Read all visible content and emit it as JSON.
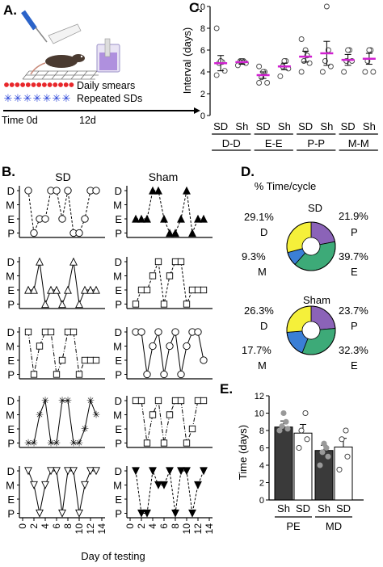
{
  "panel_labels": {
    "a": "A.",
    "b": "B.",
    "c": "C.",
    "d": "D.",
    "e": "E."
  },
  "panel_a": {
    "daily_smears": "Daily smears",
    "repeated_sds": "Repeated SDs",
    "time_start": "Time 0d",
    "time_end": "12d",
    "colors": {
      "smears": "#e8262a",
      "sds": "#1f3bd6"
    }
  },
  "chart_data": [
    {
      "id": "C",
      "type": "scatter",
      "ylabel": "Interval (days)",
      "ylim": [
        0,
        10
      ],
      "yticks": [
        0,
        2,
        4,
        6,
        8,
        10
      ],
      "mean_color": "#d020d0",
      "groups": [
        {
          "label": "SD",
          "transition": "D-D",
          "points": [
            3.7,
            4.1,
            4.8,
            4.9,
            5.0,
            8.0
          ],
          "mean": 4.8,
          "sem": 0.7
        },
        {
          "label": "Sh",
          "transition": "D-D",
          "points": [
            4.6,
            4.8,
            5.0,
            5.0,
            5.0
          ],
          "mean": 4.9,
          "sem": 0.2
        },
        {
          "label": "SD",
          "transition": "E-E",
          "points": [
            3.0,
            3.0,
            3.5,
            4.0,
            4.0,
            4.5
          ],
          "mean": 3.7,
          "sem": 0.3
        },
        {
          "label": "Sh",
          "transition": "E-E",
          "points": [
            3.6,
            4.3,
            4.5,
            5.0,
            5.0
          ],
          "mean": 4.5,
          "sem": 0.3
        },
        {
          "label": "SD",
          "transition": "P-P",
          "points": [
            4.0,
            4.8,
            5.0,
            5.5,
            6.0,
            7.0
          ],
          "mean": 5.4,
          "sem": 0.5
        },
        {
          "label": "Sh",
          "transition": "P-P",
          "points": [
            4.0,
            4.5,
            5.0,
            6.0,
            10.0
          ],
          "mean": 5.7,
          "sem": 1.1
        },
        {
          "label": "SD",
          "transition": "M-M",
          "points": [
            4.0,
            5.0,
            5.0,
            6.0,
            6.0
          ],
          "mean": 5.1,
          "sem": 0.5
        },
        {
          "label": "Sh",
          "transition": "M-M",
          "points": [
            4.0,
            4.0,
            5.0,
            6.0,
            6.0
          ],
          "mean": 5.2,
          "sem": 0.5
        }
      ],
      "transition_labels": [
        "D-D",
        "E-E",
        "P-P",
        "M-M"
      ]
    },
    {
      "id": "B",
      "type": "line",
      "column_titles": [
        "SD",
        "Sham"
      ],
      "states": [
        "D",
        "M",
        "E",
        "P"
      ],
      "xticks": [
        "0",
        "2",
        "4",
        "6",
        "8",
        "10",
        "12",
        "14"
      ],
      "xlabel": "Day of testing",
      "x": [
        1,
        2,
        3,
        4,
        5,
        6,
        7,
        8,
        9,
        10,
        11,
        12,
        13
      ],
      "rows": [
        {
          "sd": {
            "marker": "circle-open",
            "line": "dashed",
            "states": [
              "D",
              "P",
              "E",
              "E",
              "D",
              "D",
              "E",
              "D",
              "P",
              "P",
              "E",
              "D",
              "D"
            ]
          },
          "sham": {
            "marker": "triangle-filled",
            "line": "dashed",
            "states": [
              "E",
              "E",
              "E",
              "D",
              "D",
              "E",
              "P",
              "P",
              "E",
              "D",
              "P",
              "E",
              "E"
            ]
          }
        },
        {
          "sd": {
            "marker": "triangle-open",
            "line": "solid",
            "states": [
              "E",
              "E",
              "D",
              "P",
              "E",
              "E",
              "P",
              "E",
              "D",
              "P",
              "E",
              "E",
              "E"
            ]
          },
          "sham": {
            "marker": "square-open",
            "line": "dashed",
            "states": [
              "P",
              "E",
              "E",
              "M",
              "D",
              "P",
              "M",
              "D",
              "D",
              "P",
              "E",
              "E",
              "E"
            ]
          }
        },
        {
          "sd": {
            "marker": "square-open",
            "line": "dashdot",
            "states": [
              "D",
              "P",
              "M",
              "D",
              "D",
              "P",
              "E",
              "D",
              "D",
              "P",
              "E",
              "E",
              "E"
            ]
          },
          "sham": {
            "marker": "circle-open",
            "line": "solid",
            "states": [
              "D",
              "D",
              "P",
              "M",
              "D",
              "P",
              "M",
              "D",
              "P",
              "M",
              "D",
              "D",
              "E"
            ]
          }
        },
        {
          "sd": {
            "marker": "star",
            "line": "solid",
            "states": [
              "P",
              "P",
              "M",
              "D",
              "P",
              "P",
              "D",
              "D",
              "P",
              "P",
              "E",
              "D",
              "M"
            ]
          },
          "sham": {
            "marker": "square-open",
            "line": "dashdot",
            "states": [
              "D",
              "D",
              "P",
              "M",
              "D",
              "P",
              "M",
              "D",
              "D",
              "P",
              "E",
              "D",
              "D"
            ]
          }
        },
        {
          "sd": {
            "marker": "triangle-down-open",
            "line": "solid",
            "states": [
              "D",
              "M",
              "P",
              "M",
              "D",
              "D",
              "P",
              "D",
              "D",
              "P",
              "M",
              "D",
              "D"
            ]
          },
          "sham": {
            "marker": "triangle-down-filled",
            "line": "dashed",
            "states": [
              "D",
              "P",
              "P",
              "D",
              "M",
              "M",
              "D",
              "P",
              "D",
              "D",
              "P",
              "M",
              "D"
            ]
          }
        }
      ]
    },
    {
      "id": "D",
      "type": "pie",
      "title": "% Time/cycle",
      "order": [
        "P",
        "E",
        "M",
        "D"
      ],
      "colors": {
        "P": "#8b63b8",
        "E": "#3daa78",
        "M": "#3b7fd6",
        "D": "#f5f03a"
      },
      "pies": [
        {
          "name": "SD",
          "values": {
            "P": 21.9,
            "E": 39.7,
            "M": 9.3,
            "D": 29.1
          }
        },
        {
          "name": "Sham",
          "values": {
            "P": 23.7,
            "E": 32.3,
            "M": 17.7,
            "D": 26.3
          }
        }
      ]
    },
    {
      "id": "E",
      "type": "bar",
      "ylabel": "Time (days)",
      "ylim": [
        0,
        12
      ],
      "yticks": [
        0,
        2,
        4,
        6,
        8,
        10,
        12
      ],
      "categories": [
        "PE",
        "MD"
      ],
      "series": [
        {
          "name": "Sh",
          "values": [
            8.4,
            5.7
          ],
          "sem": [
            0.7,
            0.6
          ],
          "points": [
            [
              8.0,
              8.2,
              8.5,
              9.0,
              10.0
            ],
            [
              4.0,
              5.0,
              5.5,
              6.0,
              6.5
            ]
          ],
          "color": "#3a3a3a"
        },
        {
          "name": "SD",
          "values": [
            7.7,
            6.1
          ],
          "sem": [
            1.0,
            1.0
          ],
          "points": [
            [
              6.0,
              7.0,
              8.0,
              10.0
            ],
            [
              3.5,
              5.0,
              7.0,
              8.0
            ]
          ],
          "color": "#ffffff"
        }
      ],
      "bar_labels": [
        "Sh",
        "SD",
        "Sh",
        "SD"
      ]
    }
  ]
}
